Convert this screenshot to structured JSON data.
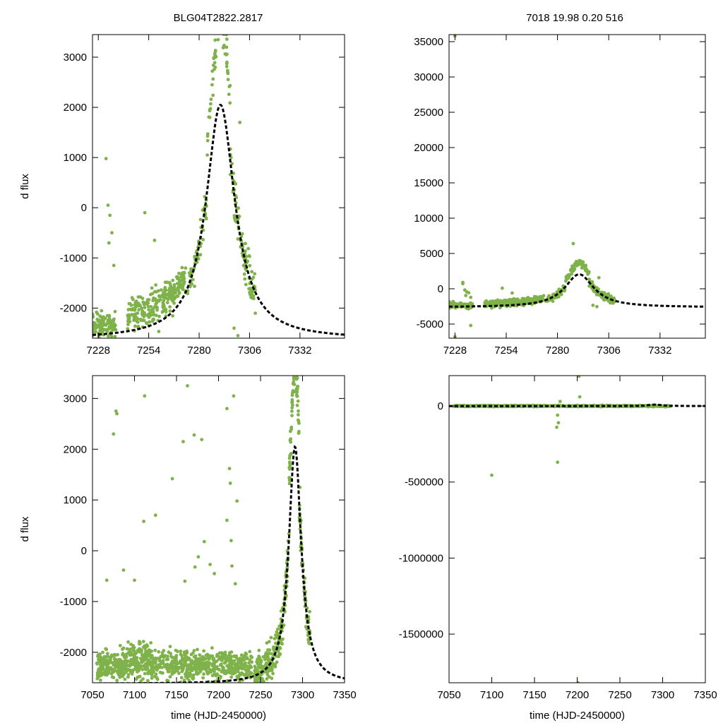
{
  "header": {
    "left_title": "BLG04T2822.2817",
    "right_title": "7018  19.98  0.20  516"
  },
  "colors": {
    "points": "#7fb24a",
    "fit": "#000000",
    "frame": "#000000"
  },
  "chart_data": [
    {
      "id": "top-left",
      "type": "scatter",
      "title": "BLG04T2822.2817",
      "xlabel": "",
      "ylabel": "d flux",
      "xlim": [
        7225,
        7355
      ],
      "ylim": [
        -2600,
        3450
      ],
      "xticks": [
        7228,
        7254,
        7280,
        7306,
        7332
      ],
      "yticks": [
        -2000,
        -1000,
        0,
        1000,
        2000,
        3000
      ],
      "series": [
        {
          "name": "observations",
          "kind": "points"
        },
        {
          "name": "model fit",
          "kind": "dashed-line"
        }
      ]
    },
    {
      "id": "top-right",
      "type": "scatter",
      "title": "7018  19.98  0.20  516",
      "xlabel": "",
      "ylabel": "",
      "xlim": [
        7225,
        7355
      ],
      "ylim": [
        -7000,
        36000
      ],
      "xticks": [
        7228,
        7254,
        7280,
        7306,
        7332
      ],
      "yticks": [
        -5000,
        0,
        5000,
        10000,
        15000,
        20000,
        25000,
        30000,
        35000
      ],
      "series": [
        {
          "name": "observations",
          "kind": "points"
        },
        {
          "name": "model fit",
          "kind": "dashed-line"
        }
      ]
    },
    {
      "id": "bottom-left",
      "type": "scatter",
      "title": "",
      "xlabel": "time (HJD-2450000)",
      "ylabel": "d flux",
      "xlim": [
        7050,
        7350
      ],
      "ylim": [
        -2600,
        3450
      ],
      "xticks": [
        7050,
        7100,
        7150,
        7200,
        7250,
        7300,
        7350
      ],
      "yticks": [
        -2000,
        -1000,
        0,
        1000,
        2000,
        3000
      ],
      "series": [
        {
          "name": "observations",
          "kind": "points"
        },
        {
          "name": "model fit",
          "kind": "dashed-line"
        }
      ]
    },
    {
      "id": "bottom-right",
      "type": "scatter",
      "title": "",
      "xlabel": "time (HJD-2450000)",
      "ylabel": "",
      "xlim": [
        7050,
        7350
      ],
      "ylim": [
        -1820000,
        200000
      ],
      "xticks": [
        7050,
        7100,
        7150,
        7200,
        7250,
        7300,
        7350
      ],
      "yticks": [
        -1500000,
        -1000000,
        -500000,
        0
      ],
      "series": [
        {
          "name": "observations",
          "kind": "points"
        },
        {
          "name": "model fit",
          "kind": "dashed-line"
        }
      ]
    }
  ],
  "model": {
    "t0": 7291,
    "tE": 9,
    "base": -2620,
    "peak": 2050
  }
}
